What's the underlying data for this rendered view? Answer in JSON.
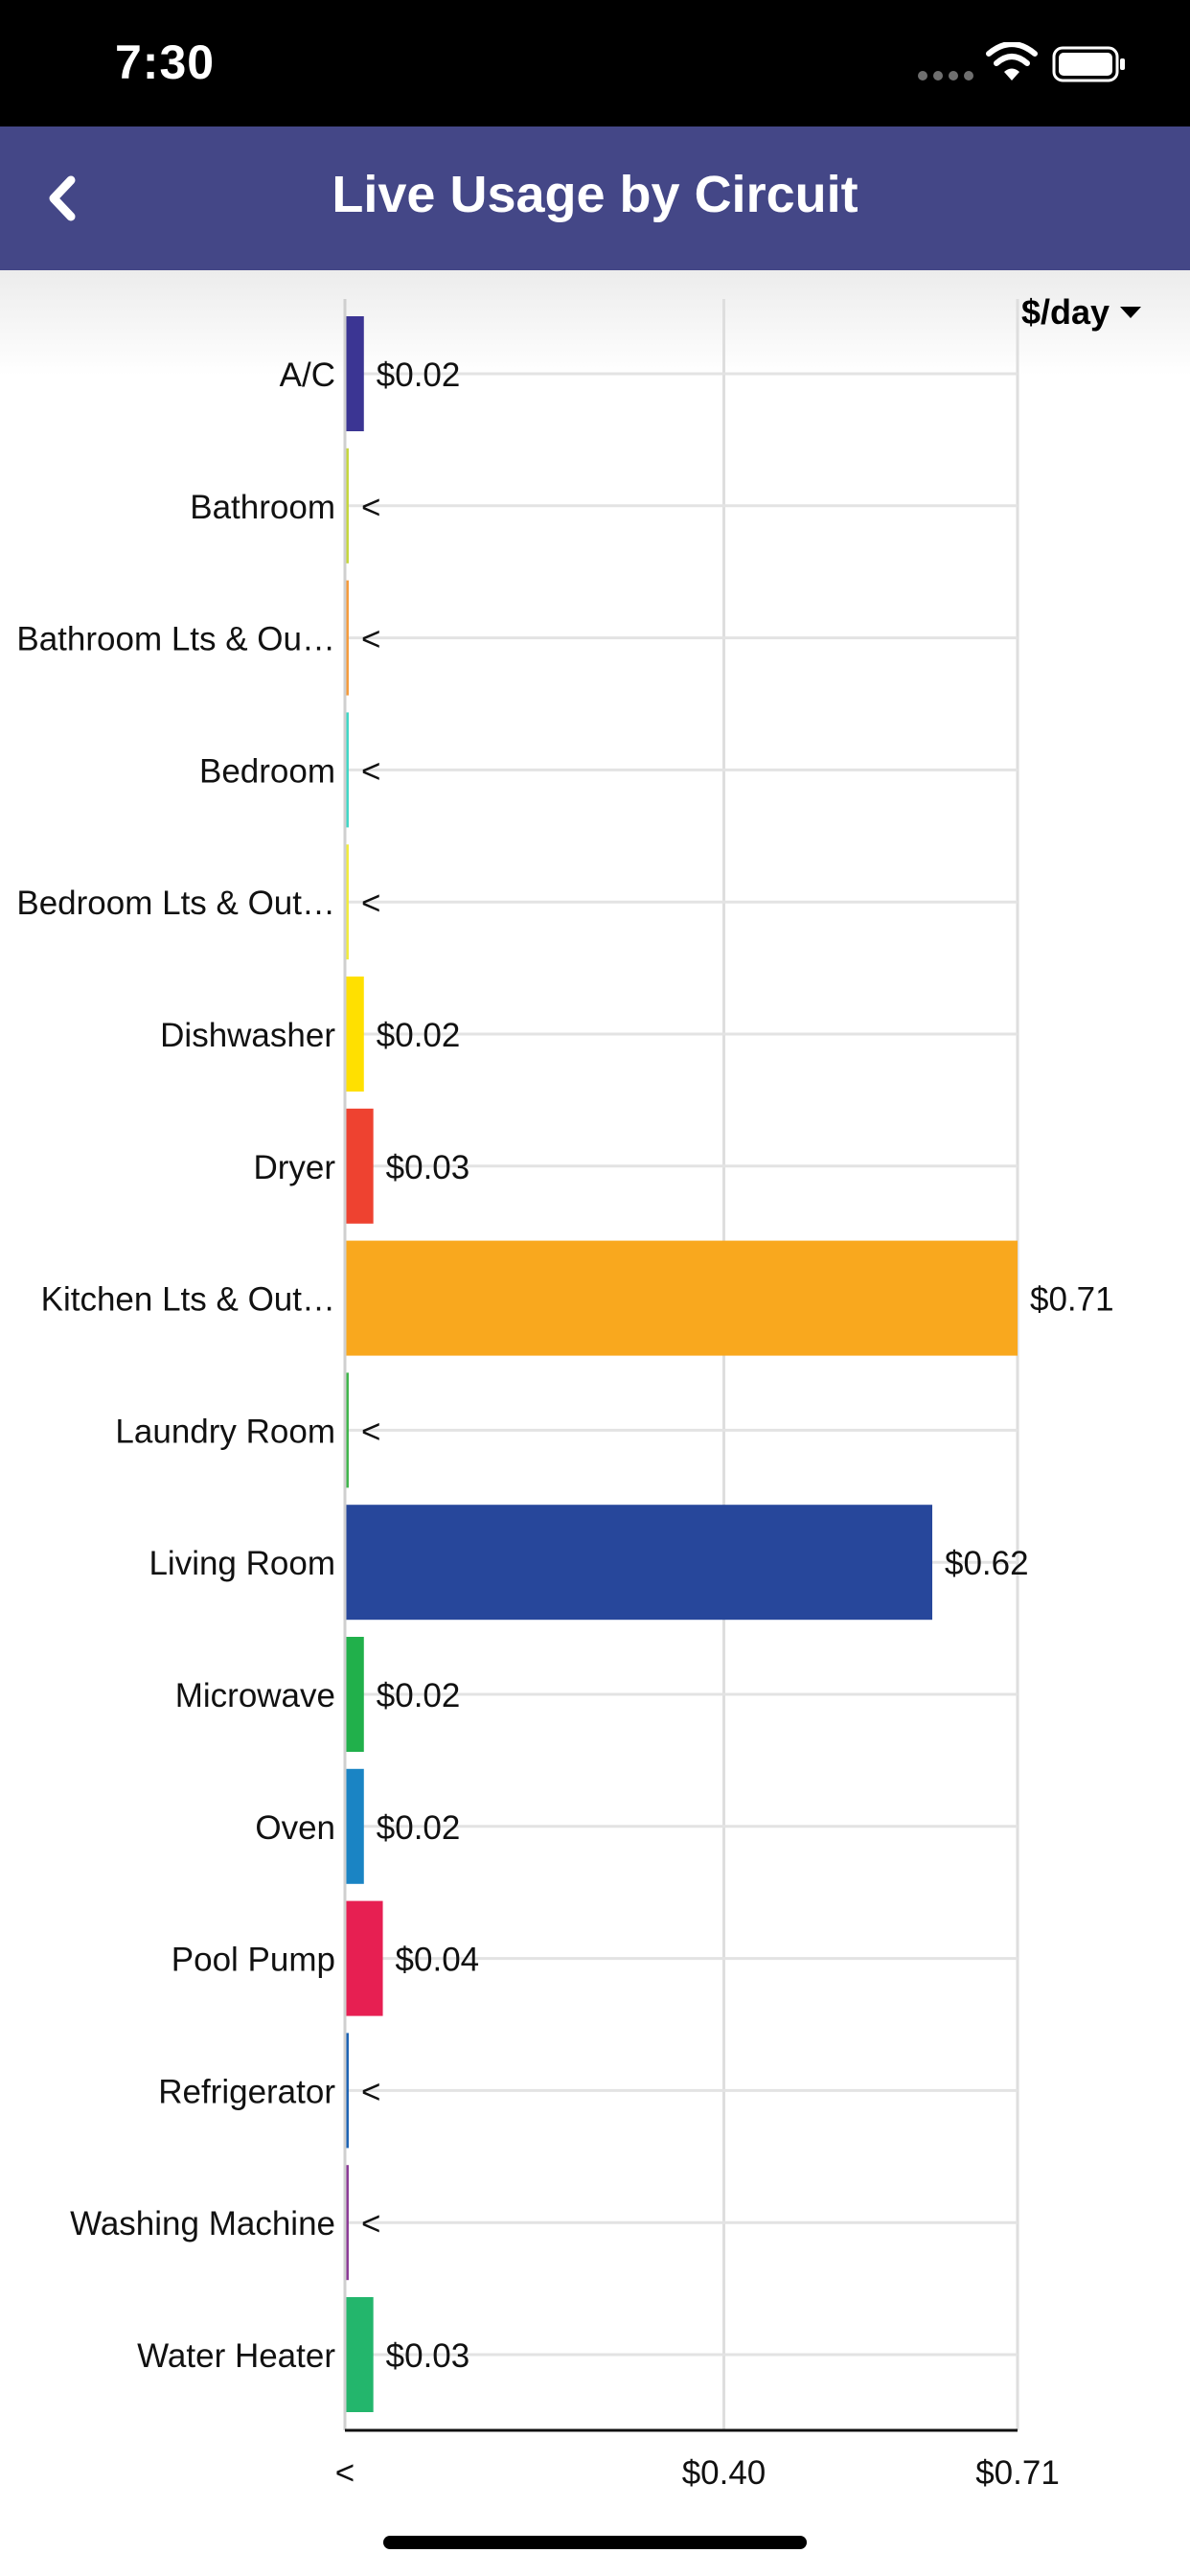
{
  "status_bar": {
    "time": "7:30",
    "icons": [
      "signal-dots-icon",
      "wifi-icon",
      "battery-icon"
    ]
  },
  "nav": {
    "title": "Live Usage by Circuit",
    "back_icon": "chevron-left-icon"
  },
  "unit_selector": {
    "label": "$/day",
    "icon": "caret-down-icon"
  },
  "colors": {
    "nav_background": "#444787",
    "status_background": "#000000"
  },
  "chart_data": {
    "type": "bar",
    "orientation": "horizontal",
    "title": "",
    "xlabel": "",
    "ylabel": "",
    "xlim": [
      0,
      0.71
    ],
    "x_tick_labels": [
      "<",
      "$0.40",
      "$0.71"
    ],
    "x_tick_values": [
      0,
      0.4,
      0.71
    ],
    "grid": true,
    "categories": [
      "A/C",
      "Bathroom",
      "Bathroom Lts & Ou…",
      "Bedroom",
      "Bedroom Lts & Out…",
      "Dishwasher",
      "Dryer",
      "Kitchen Lts & Out…",
      "Laundry Room",
      "Living Room",
      "Microwave",
      "Oven",
      "Pool Pump",
      "Refrigerator",
      "Washing Machine",
      "Water Heater"
    ],
    "values": [
      0.02,
      0.004,
      0.004,
      0.004,
      0.004,
      0.02,
      0.03,
      0.71,
      0.004,
      0.62,
      0.02,
      0.02,
      0.04,
      0.004,
      0.004,
      0.03
    ],
    "value_labels": [
      "$0.02",
      "<",
      "<",
      "<",
      "<",
      "$0.02",
      "$0.03",
      "$0.71",
      "<",
      "$0.62",
      "$0.02",
      "$0.02",
      "$0.04",
      "<",
      "<",
      "$0.03"
    ],
    "colors": [
      "#3b3593",
      "#c6d63a",
      "#f59a3a",
      "#3fd6c6",
      "#f2ec3a",
      "#ffe000",
      "#ee4230",
      "#f9a81e",
      "#3eb54a",
      "#27479b",
      "#21b04b",
      "#1a84c4",
      "#e71f52",
      "#1b62b3",
      "#8b3a96",
      "#23b66c"
    ]
  }
}
